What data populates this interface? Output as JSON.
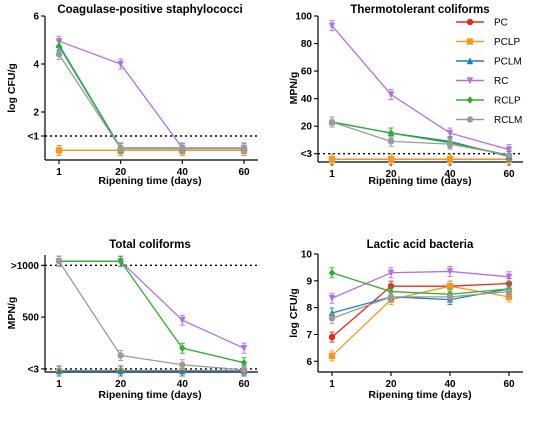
{
  "legend": [
    {
      "name": "PC",
      "color": "#e8291c",
      "marker": "circle"
    },
    {
      "name": "PCLP",
      "color": "#f39a1e",
      "marker": "square"
    },
    {
      "name": "PCLM",
      "color": "#1a82b8",
      "marker": "triangle-up"
    },
    {
      "name": "RC",
      "color": "#b56ee6",
      "marker": "triangle-down"
    },
    {
      "name": "RCLP",
      "color": "#2eb02e",
      "marker": "diamond"
    },
    {
      "name": "RCLM",
      "color": "#9b9b9b",
      "marker": "circle"
    }
  ],
  "chart_data": [
    {
      "type": "line",
      "title": "Coagulase-positive staphylococci",
      "xlabel": "Ripening time (days)",
      "ylabel": "log CFU/g",
      "x": [
        1,
        20,
        40,
        60
      ],
      "xticks": [
        "1",
        "20",
        "40",
        "60"
      ],
      "ylim": [
        0,
        6
      ],
      "yticks": [
        {
          "v": 2,
          "label": "2"
        },
        {
          "v": 4,
          "label": "4"
        },
        {
          "v": 6,
          "label": "6"
        }
      ],
      "threshold": {
        "v": 1,
        "label": "<1"
      },
      "series": [
        {
          "name": "PC",
          "values": [
            0.4,
            0.4,
            0.4,
            0.4
          ]
        },
        {
          "name": "PCLP",
          "values": [
            0.4,
            0.4,
            0.4,
            0.4
          ]
        },
        {
          "name": "PCLM",
          "values": [
            4.8,
            0.5,
            0.5,
            0.5
          ]
        },
        {
          "name": "RC",
          "values": [
            4.95,
            4.0,
            0.5,
            0.5
          ]
        },
        {
          "name": "RCLP",
          "values": [
            4.75,
            0.48,
            0.48,
            0.48
          ]
        },
        {
          "name": "RCLM",
          "values": [
            4.4,
            0.48,
            0.48,
            0.48
          ]
        }
      ]
    },
    {
      "type": "line",
      "title": "Thermotolerant coliforms",
      "xlabel": "Ripening time (days)",
      "ylabel": "MPN/g",
      "x": [
        1,
        20,
        40,
        60
      ],
      "xticks": [
        "1",
        "20",
        "40",
        "60"
      ],
      "ylim": [
        -6,
        100
      ],
      "yticks": [
        {
          "v": 20,
          "label": "20"
        },
        {
          "v": 40,
          "label": "40"
        },
        {
          "v": 60,
          "label": "60"
        },
        {
          "v": 80,
          "label": "80"
        },
        {
          "v": 100,
          "label": "100"
        }
      ],
      "threshold": {
        "v": 0,
        "label": "<3"
      },
      "series": [
        {
          "name": "PC",
          "values": [
            -4,
            -4,
            -4,
            -4
          ]
        },
        {
          "name": "PCLP",
          "values": [
            -4,
            -4,
            -4,
            -4
          ]
        },
        {
          "name": "PCLM",
          "values": [
            23,
            15,
            9,
            -2
          ]
        },
        {
          "name": "RC",
          "values": [
            93,
            43,
            15,
            3
          ]
        },
        {
          "name": "RCLP",
          "values": [
            23,
            15,
            8,
            -1
          ]
        },
        {
          "name": "RCLM",
          "values": [
            23,
            9,
            7,
            -1
          ]
        }
      ]
    },
    {
      "type": "line",
      "title": "Total coliforms",
      "xlabel": "Ripening time (days)",
      "ylabel": "MPN/g",
      "x": [
        1,
        20,
        40,
        60
      ],
      "xticks": [
        "1",
        "20",
        "40",
        "60"
      ],
      "ylim": [
        -30,
        1100
      ],
      "yticks": [
        {
          "v": 0,
          "label": "<3"
        },
        {
          "v": 500,
          "label": "500"
        },
        {
          "v": 1000,
          "label": ">1000"
        }
      ],
      "threshold": {
        "v": 0,
        "label": ""
      },
      "upper_line": 1000,
      "series": [
        {
          "name": "PC",
          "values": [
            -20,
            -20,
            -20,
            -20
          ]
        },
        {
          "name": "PCLP",
          "values": [
            -20,
            -20,
            -20,
            -20
          ]
        },
        {
          "name": "PCLM",
          "values": [
            -20,
            -20,
            -20,
            -20
          ]
        },
        {
          "name": "RC",
          "values": [
            1040,
            1040,
            470,
            200
          ]
        },
        {
          "name": "RCLP",
          "values": [
            1040,
            1040,
            200,
            60
          ]
        },
        {
          "name": "RCLM",
          "values": [
            1040,
            130,
            40,
            -10
          ]
        }
      ]
    },
    {
      "type": "line",
      "title": "Lactic acid bacteria",
      "xlabel": "Ripening time (days)",
      "ylabel": "log CFU/g",
      "x": [
        1,
        20,
        40,
        60
      ],
      "xticks": [
        "1",
        "20",
        "40",
        "60"
      ],
      "ylim": [
        5.6,
        10
      ],
      "yticks": [
        {
          "v": 6,
          "label": "6"
        },
        {
          "v": 7,
          "label": "7"
        },
        {
          "v": 8,
          "label": "8"
        },
        {
          "v": 9,
          "label": "9"
        },
        {
          "v": 10,
          "label": "10"
        }
      ],
      "series": [
        {
          "name": "PC",
          "values": [
            6.9,
            8.8,
            8.8,
            8.9
          ]
        },
        {
          "name": "PCLP",
          "values": [
            6.2,
            8.3,
            8.8,
            8.4
          ]
        },
        {
          "name": "PCLM",
          "values": [
            7.8,
            8.4,
            8.3,
            8.7
          ]
        },
        {
          "name": "RC",
          "values": [
            8.35,
            9.3,
            9.35,
            9.15
          ]
        },
        {
          "name": "RCLP",
          "values": [
            9.3,
            8.6,
            8.5,
            8.7
          ]
        },
        {
          "name": "RCLM",
          "values": [
            7.6,
            8.4,
            8.4,
            8.6
          ]
        }
      ]
    }
  ]
}
